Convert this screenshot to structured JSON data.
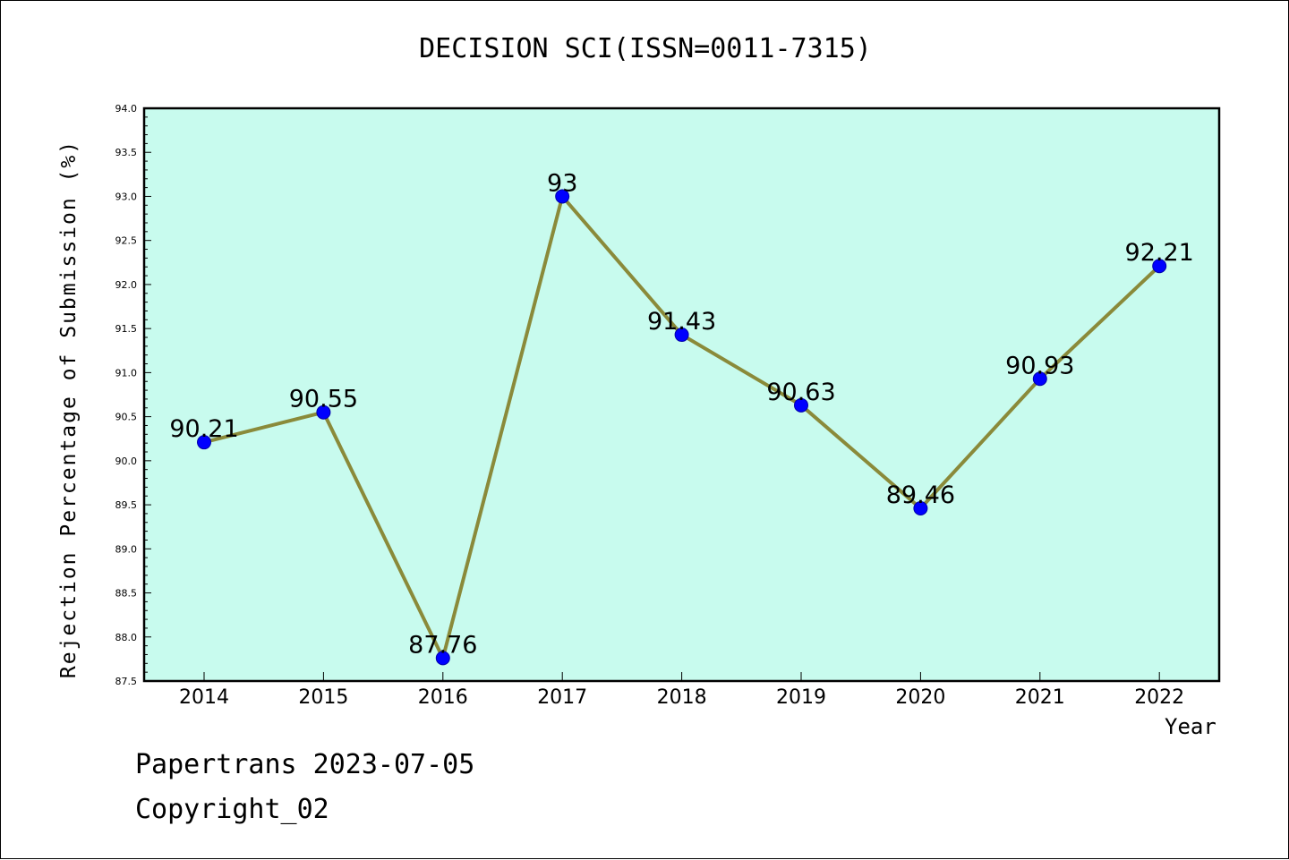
{
  "chart_data": {
    "type": "line",
    "title": "DECISION SCI(ISSN=0011-7315)",
    "xlabel": "Year",
    "ylabel": "Rejection Percentage of Submission (%)",
    "categories": [
      "2014",
      "2015",
      "2016",
      "2017",
      "2018",
      "2019",
      "2020",
      "2021",
      "2022"
    ],
    "series": [
      {
        "values": [
          90.21,
          90.55,
          87.76,
          93,
          91.43,
          90.63,
          89.46,
          90.93,
          92.21
        ],
        "data_labels": [
          "90.21",
          "90.55",
          "87.76",
          "93",
          "91.43",
          "90.63",
          "89.46",
          "90.93",
          "92.21"
        ],
        "line_color": "#8a8a3a",
        "marker_color": "#0000ff"
      }
    ],
    "ylim": [
      87.5,
      94.0
    ],
    "yticks": [
      "87.5",
      "88.0",
      "88.5",
      "89.0",
      "89.5",
      "90.0",
      "90.5",
      "91.0",
      "91.5",
      "92.0",
      "92.5",
      "93.0",
      "93.5",
      "94.0"
    ],
    "plot_background": "#c8fbee",
    "grid": false,
    "legend": "none"
  },
  "footer": {
    "line1": "Papertrans 2023-07-05",
    "line2": "Copyright_02"
  }
}
